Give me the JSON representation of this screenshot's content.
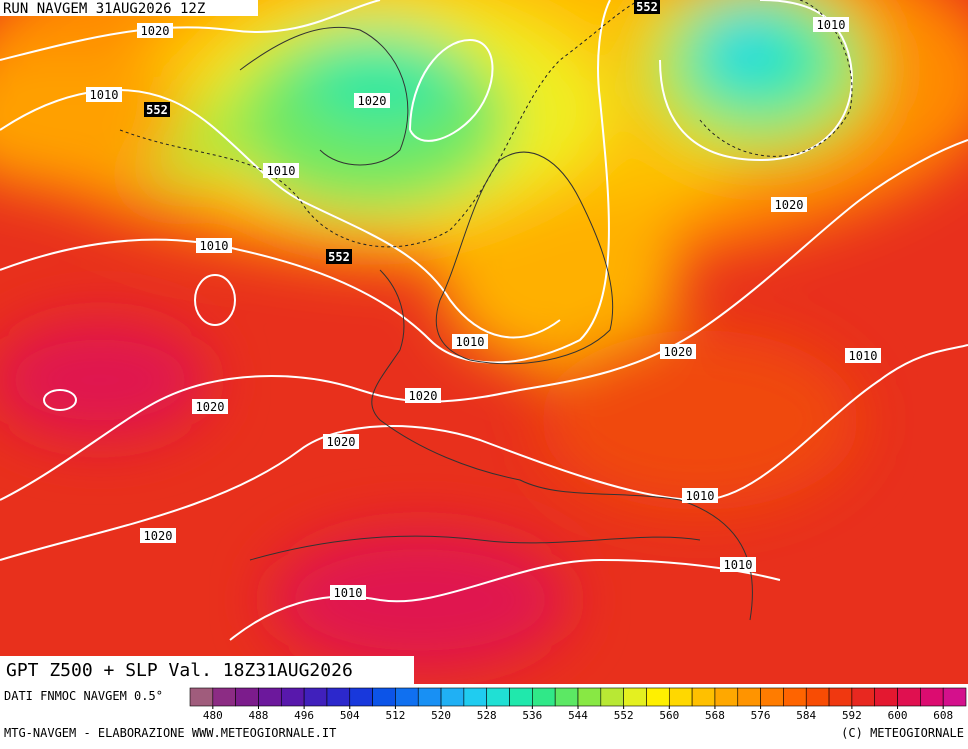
{
  "header": {
    "title": "RUN NAVGEM 31AUG2026 12Z"
  },
  "map": {
    "title": "GPT Z500 + SLP Val. 18Z31AUG2026",
    "isobar_labels": [
      1020,
      1010,
      1020,
      1010,
      1010,
      1010,
      1020,
      1010,
      1020,
      1010,
      1020,
      1020,
      1020,
      1010,
      1020,
      1010,
      1010
    ],
    "height_labels": [
      552,
      552,
      552
    ]
  },
  "colorbar": {
    "source": "DATI FNMOC NAVGEM 0.5°",
    "levels": [
      476,
      480,
      484,
      488,
      492,
      496,
      500,
      504,
      508,
      512,
      516,
      520,
      524,
      528,
      532,
      536,
      540,
      544,
      548,
      552,
      556,
      560,
      564,
      568,
      572,
      576,
      580,
      584,
      588,
      592,
      596,
      600,
      604,
      608,
      612
    ],
    "colors": [
      "#a05c7c",
      "#8c2c84",
      "#7c1c8c",
      "#6c189c",
      "#5818ac",
      "#4020bc",
      "#2c28cc",
      "#1838dc",
      "#0c54e8",
      "#1070f0",
      "#1890f4",
      "#20b0f4",
      "#20ccf0",
      "#20e0d4",
      "#20e8ac",
      "#30e888",
      "#5ce864",
      "#88e844",
      "#b8e834",
      "#e4f020",
      "#fff000",
      "#ffd800",
      "#ffc000",
      "#ffa800",
      "#ff9400",
      "#ff7c00",
      "#ff6400",
      "#f84c04",
      "#f03810",
      "#e82820",
      "#e41830",
      "#e01050",
      "#dc0c70",
      "#d4108c"
    ],
    "ticks": [
      480,
      488,
      496,
      504,
      512,
      520,
      528,
      536,
      544,
      552,
      560,
      568,
      576,
      584,
      592,
      600,
      608
    ]
  },
  "footer": {
    "left": "MTG-NAVGEM - ELABORAZIONE WWW.METEOGIORNALE.IT",
    "right": "(C) METEOGIORNALE"
  }
}
